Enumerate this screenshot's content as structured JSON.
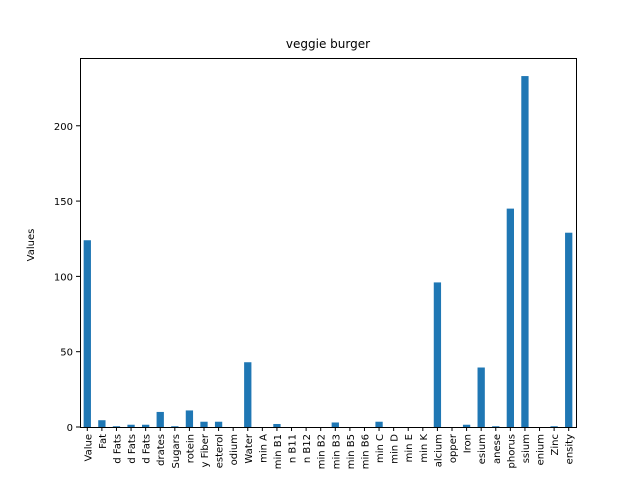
{
  "chart_data": {
    "type": "bar",
    "title": "veggie burger",
    "xlabel": "",
    "ylabel": "Values",
    "ylim": [
      0,
      245
    ],
    "yticks": [
      0,
      50,
      100,
      150,
      200
    ],
    "grid": false,
    "color": "#1f77b4",
    "categories": [
      "Value",
      "Fat",
      "d Fats",
      "d Fats",
      "d Fats",
      "drates",
      "Sugars",
      "rotein",
      "y Fiber",
      "esterol",
      "odium",
      "Water",
      "min A",
      "min B1",
      "n B11",
      "n B12",
      "min B2",
      "min B3",
      "min B5",
      "min B6",
      "min C",
      "min D",
      "min E",
      "min K",
      "alcium",
      "opper",
      "Iron",
      "esium",
      "anese",
      "phorus",
      "ssium",
      "enium",
      "Zinc",
      "ensity"
    ],
    "values": [
      124,
      4.5,
      0.5,
      1.5,
      1.5,
      10,
      0.5,
      11,
      3.5,
      3.5,
      0,
      43,
      0,
      2,
      0,
      0,
      0,
      3,
      0,
      0,
      3.5,
      0,
      0,
      0,
      96,
      0,
      1.5,
      39.5,
      0.5,
      145,
      233,
      0,
      0.5,
      129
    ]
  }
}
